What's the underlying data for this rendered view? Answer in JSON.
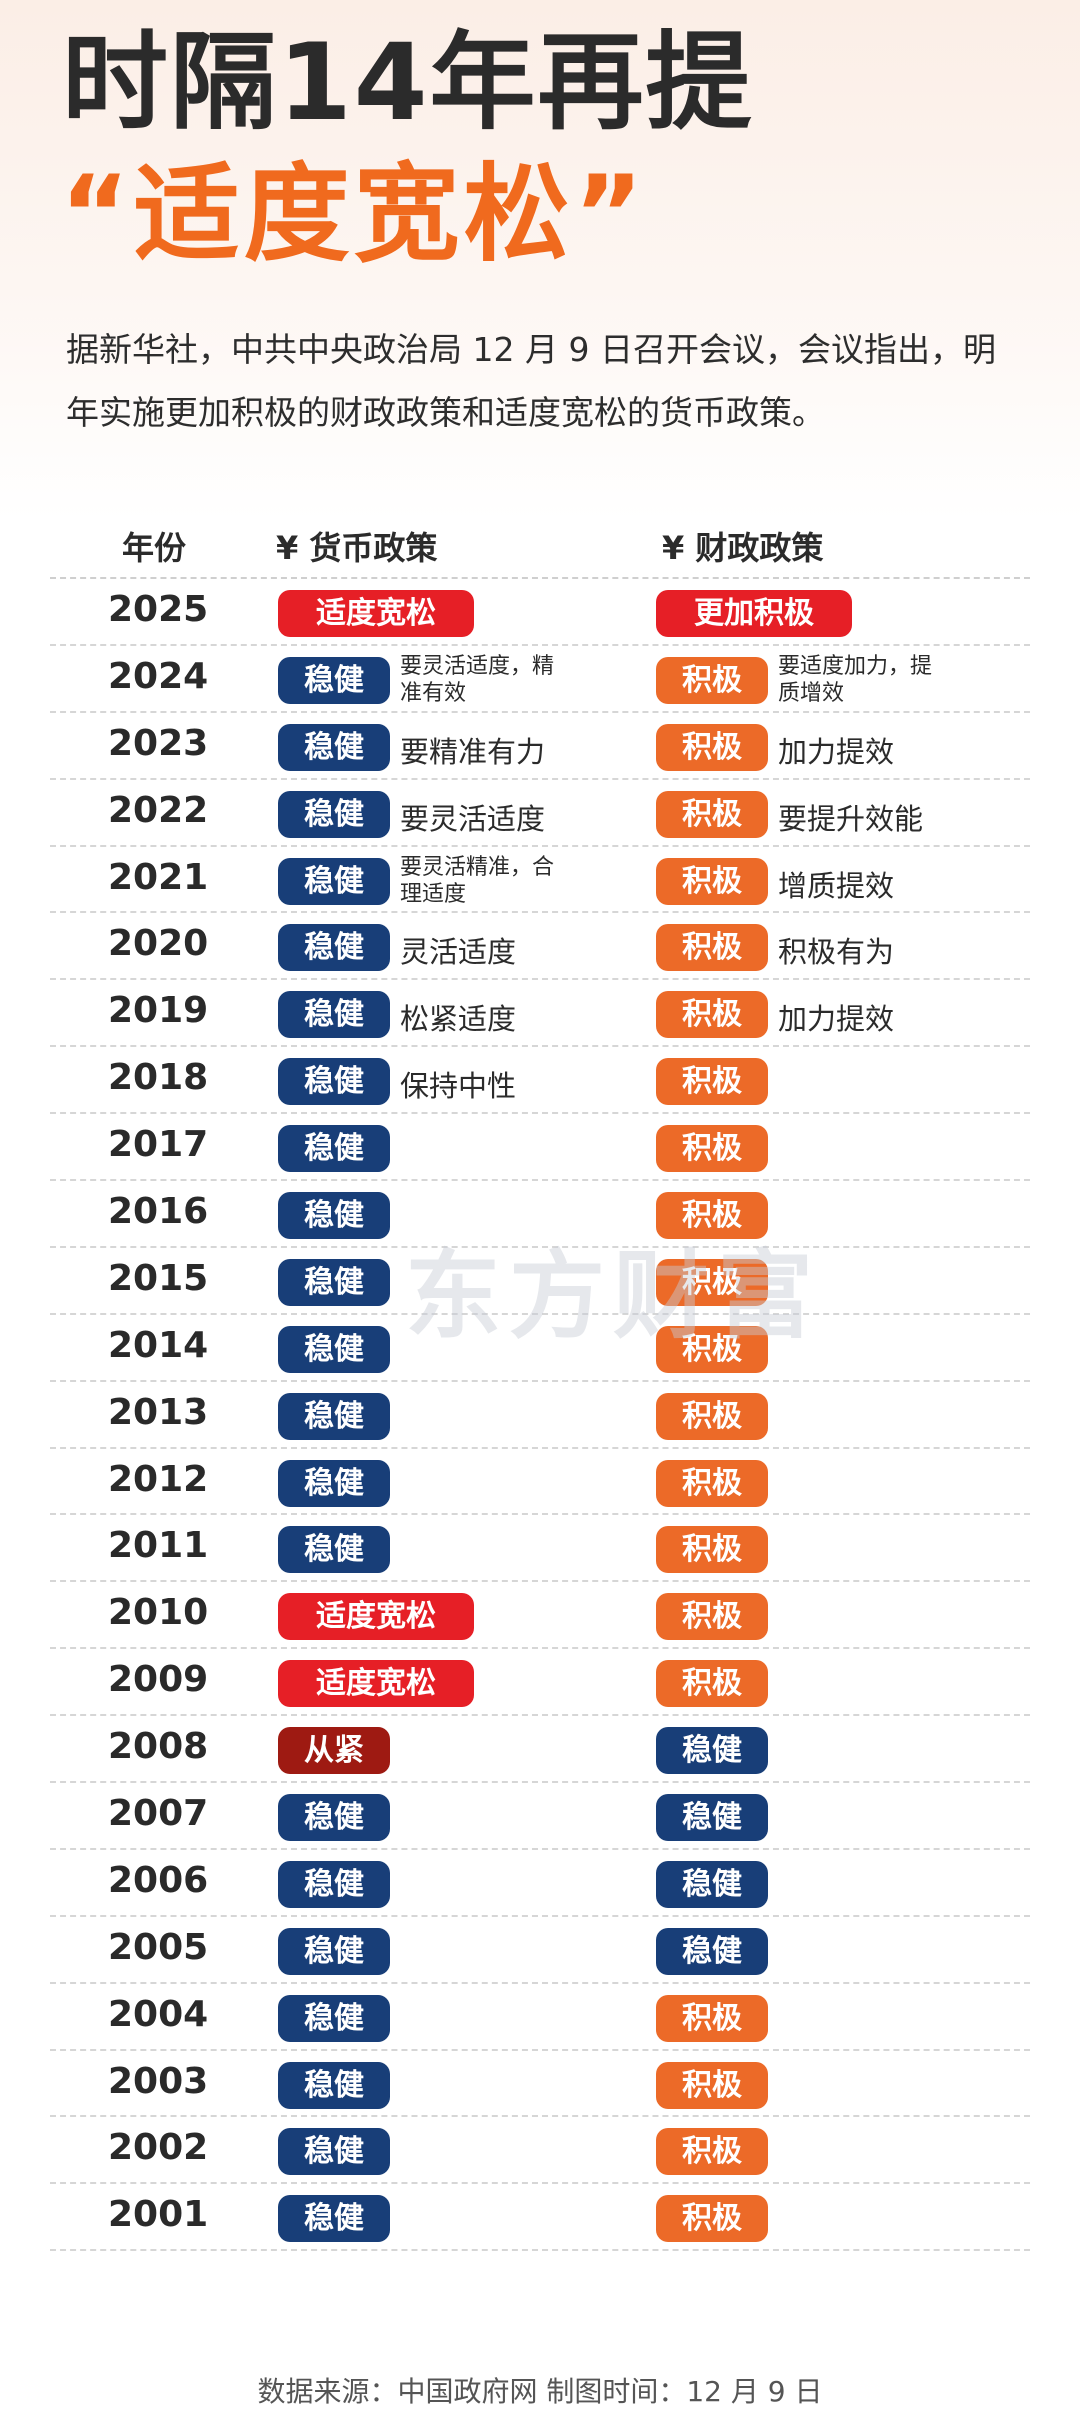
{
  "title_line1": "时隔14年再提",
  "title_line2": "“适度宽松”",
  "intro": "据新华社，中共中央政治局 12 月 9 日召开会议，会议指出，明年实施更加积极的财政政策和适度宽松的货币政策。",
  "headers": {
    "year": "年份",
    "monetary": "¥ 货币政策",
    "fiscal": "¥ 财政政策"
  },
  "watermark": "东方财富",
  "source": "数据来源：中国政府网    制图时间：12 月 9 日",
  "colors": {
    "navy": "#183e78",
    "orange": "#ec6a28",
    "red": "#e61f26",
    "dark_red": "#9e1a12",
    "title_orange": "#f06a1e"
  },
  "rows": [
    {
      "year": "2025",
      "monetary": "适度宽松",
      "monetary_color": "red",
      "monetary_note": "",
      "fiscal": "更加积极",
      "fiscal_color": "red",
      "fiscal_note": ""
    },
    {
      "year": "2024",
      "monetary": "稳健",
      "monetary_color": "navy",
      "monetary_note": "要灵活适度，精准有效",
      "fiscal": "积极",
      "fiscal_color": "orange",
      "fiscal_note": "要适度加力，提质增效"
    },
    {
      "year": "2023",
      "monetary": "稳健",
      "monetary_color": "navy",
      "monetary_note": "要精准有力",
      "fiscal": "积极",
      "fiscal_color": "orange",
      "fiscal_note": "加力提效"
    },
    {
      "year": "2022",
      "monetary": "稳健",
      "monetary_color": "navy",
      "monetary_note": "要灵活适度",
      "fiscal": "积极",
      "fiscal_color": "orange",
      "fiscal_note": "要提升效能"
    },
    {
      "year": "2021",
      "monetary": "稳健",
      "monetary_color": "navy",
      "monetary_note": "要灵活精准，合理适度",
      "fiscal": "积极",
      "fiscal_color": "orange",
      "fiscal_note": "增质提效"
    },
    {
      "year": "2020",
      "monetary": "稳健",
      "monetary_color": "navy",
      "monetary_note": "灵活适度",
      "fiscal": "积极",
      "fiscal_color": "orange",
      "fiscal_note": "积极有为"
    },
    {
      "year": "2019",
      "monetary": "稳健",
      "monetary_color": "navy",
      "monetary_note": "松紧适度",
      "fiscal": "积极",
      "fiscal_color": "orange",
      "fiscal_note": "加力提效"
    },
    {
      "year": "2018",
      "monetary": "稳健",
      "monetary_color": "navy",
      "monetary_note": "保持中性",
      "fiscal": "积极",
      "fiscal_color": "orange",
      "fiscal_note": ""
    },
    {
      "year": "2017",
      "monetary": "稳健",
      "monetary_color": "navy",
      "monetary_note": "",
      "fiscal": "积极",
      "fiscal_color": "orange",
      "fiscal_note": ""
    },
    {
      "year": "2016",
      "monetary": "稳健",
      "monetary_color": "navy",
      "monetary_note": "",
      "fiscal": "积极",
      "fiscal_color": "orange",
      "fiscal_note": ""
    },
    {
      "year": "2015",
      "monetary": "稳健",
      "monetary_color": "navy",
      "monetary_note": "",
      "fiscal": "积极",
      "fiscal_color": "orange",
      "fiscal_note": ""
    },
    {
      "year": "2014",
      "monetary": "稳健",
      "monetary_color": "navy",
      "monetary_note": "",
      "fiscal": "积极",
      "fiscal_color": "orange",
      "fiscal_note": ""
    },
    {
      "year": "2013",
      "monetary": "稳健",
      "monetary_color": "navy",
      "monetary_note": "",
      "fiscal": "积极",
      "fiscal_color": "orange",
      "fiscal_note": ""
    },
    {
      "year": "2012",
      "monetary": "稳健",
      "monetary_color": "navy",
      "monetary_note": "",
      "fiscal": "积极",
      "fiscal_color": "orange",
      "fiscal_note": ""
    },
    {
      "year": "2011",
      "monetary": "稳健",
      "monetary_color": "navy",
      "monetary_note": "",
      "fiscal": "积极",
      "fiscal_color": "orange",
      "fiscal_note": ""
    },
    {
      "year": "2010",
      "monetary": "适度宽松",
      "monetary_color": "red",
      "monetary_note": "",
      "fiscal": "积极",
      "fiscal_color": "orange",
      "fiscal_note": ""
    },
    {
      "year": "2009",
      "monetary": "适度宽松",
      "monetary_color": "red",
      "monetary_note": "",
      "fiscal": "积极",
      "fiscal_color": "orange",
      "fiscal_note": ""
    },
    {
      "year": "2008",
      "monetary": "从紧",
      "monetary_color": "dark_red",
      "monetary_note": "",
      "fiscal": "稳健",
      "fiscal_color": "navy",
      "fiscal_note": ""
    },
    {
      "year": "2007",
      "monetary": "稳健",
      "monetary_color": "navy",
      "monetary_note": "",
      "fiscal": "稳健",
      "fiscal_color": "navy",
      "fiscal_note": ""
    },
    {
      "year": "2006",
      "monetary": "稳健",
      "monetary_color": "navy",
      "monetary_note": "",
      "fiscal": "稳健",
      "fiscal_color": "navy",
      "fiscal_note": ""
    },
    {
      "year": "2005",
      "monetary": "稳健",
      "monetary_color": "navy",
      "monetary_note": "",
      "fiscal": "稳健",
      "fiscal_color": "navy",
      "fiscal_note": ""
    },
    {
      "year": "2004",
      "monetary": "稳健",
      "monetary_color": "navy",
      "monetary_note": "",
      "fiscal": "积极",
      "fiscal_color": "orange",
      "fiscal_note": ""
    },
    {
      "year": "2003",
      "monetary": "稳健",
      "monetary_color": "navy",
      "monetary_note": "",
      "fiscal": "积极",
      "fiscal_color": "orange",
      "fiscal_note": ""
    },
    {
      "year": "2002",
      "monetary": "稳健",
      "monetary_color": "navy",
      "monetary_note": "",
      "fiscal": "积极",
      "fiscal_color": "orange",
      "fiscal_note": ""
    },
    {
      "year": "2001",
      "monetary": "稳健",
      "monetary_color": "navy",
      "monetary_note": "",
      "fiscal": "积极",
      "fiscal_color": "orange",
      "fiscal_note": ""
    }
  ]
}
